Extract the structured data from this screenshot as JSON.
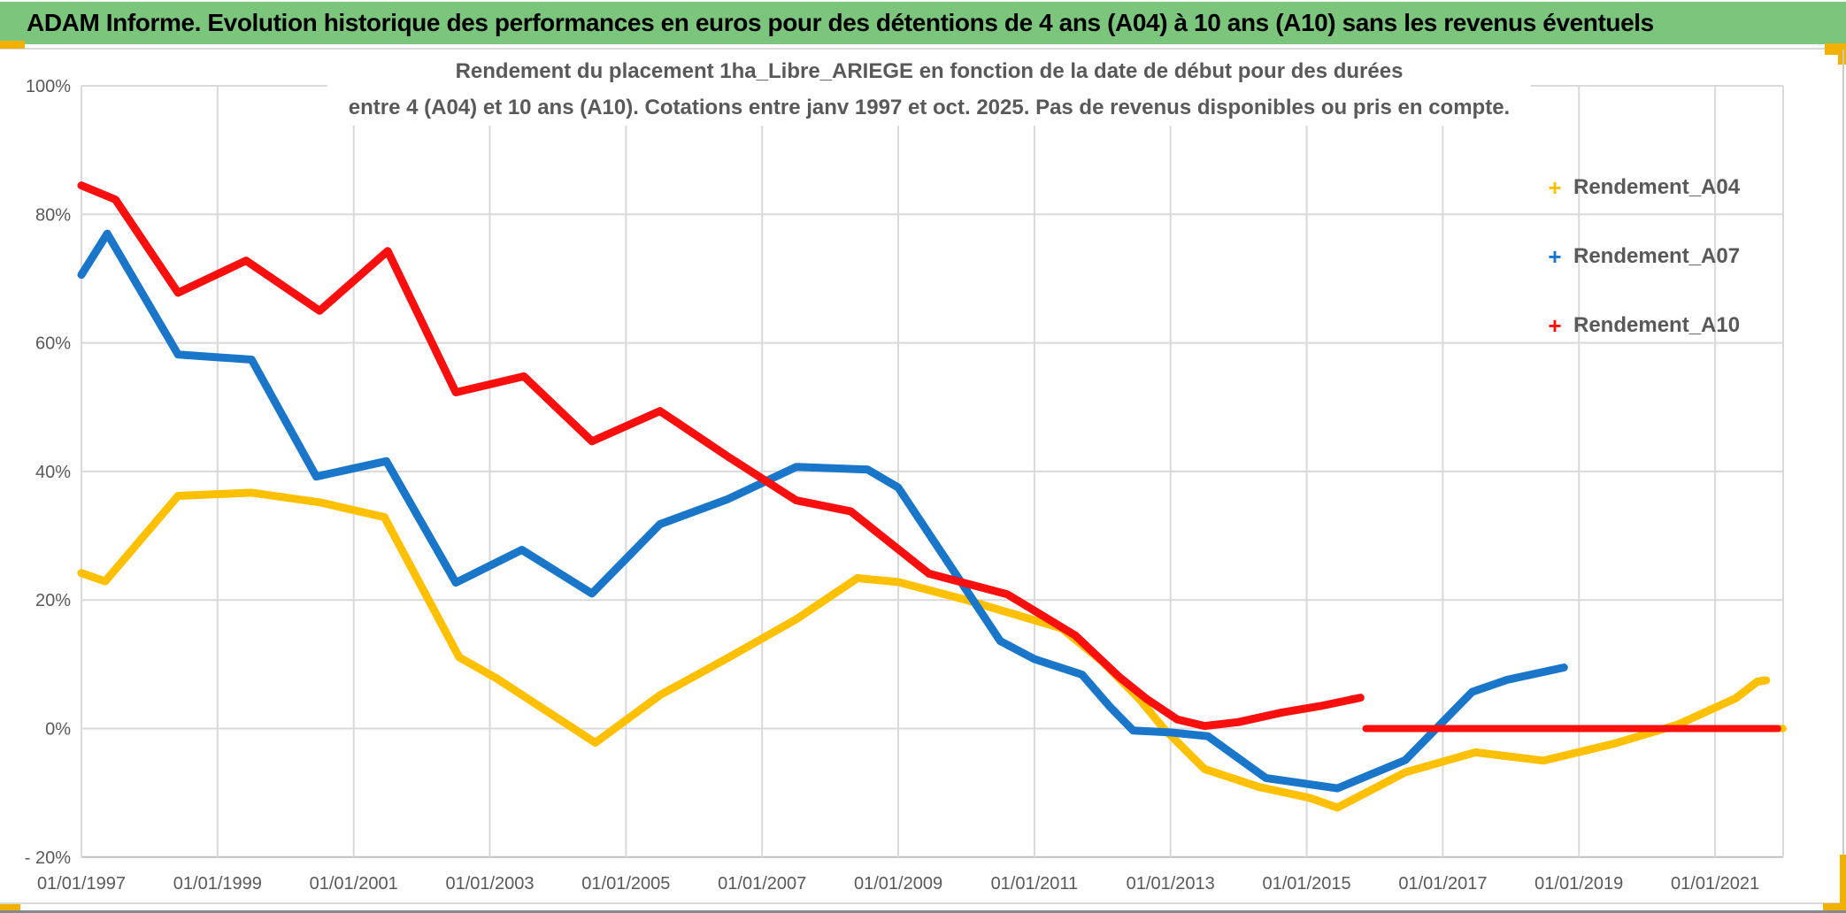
{
  "header": {
    "title": "ADAM Informe. Evolution historique des performances en euros pour des détentions de 4 ans (A04) à 10 ans (A10) sans les revenus éventuels"
  },
  "colors": {
    "header_bg": "#7CC57D",
    "corner_accent": "#F2B100",
    "gridline": "#D9D9D9",
    "axis_line": "#BFBFBF",
    "tick_text": "#595959",
    "title_text": "#595959",
    "series_a04": "#FFC000",
    "series_a07": "#1976C8",
    "series_a10": "#FA0F0F"
  },
  "chart_data": {
    "type": "line",
    "title_lines": [
      "Rendement du placement 1ha_Libre_ARIEGE en fonction de la date de début pour des durées",
      "entre 4 (A04) et 10 ans (A10). Cotations entre janv 1997 et oct. 2025. Pas de revenus disponibles ou pris en compte."
    ],
    "grid": true,
    "legend_position": "right",
    "x_range": [
      1997.0,
      2022.0
    ],
    "y_range": [
      -20,
      100
    ],
    "x_ticks": [
      {
        "label": "01/01/1997",
        "year": 1997
      },
      {
        "label": "01/01/1999",
        "year": 1999
      },
      {
        "label": "01/01/2001",
        "year": 2001
      },
      {
        "label": "01/01/2003",
        "year": 2003
      },
      {
        "label": "01/01/2005",
        "year": 2005
      },
      {
        "label": "01/01/2007",
        "year": 2007
      },
      {
        "label": "01/01/2009",
        "year": 2009
      },
      {
        "label": "01/01/2011",
        "year": 2011
      },
      {
        "label": "01/01/2013",
        "year": 2013
      },
      {
        "label": "01/01/2015",
        "year": 2015
      },
      {
        "label": "01/01/2017",
        "year": 2017
      },
      {
        "label": "01/01/2019",
        "year": 2019
      },
      {
        "label": "01/01/2021",
        "year": 2021
      }
    ],
    "y_ticks": [
      {
        "label": "100%",
        "value": 100
      },
      {
        "label": "80%",
        "value": 80
      },
      {
        "label": "60%",
        "value": 60
      },
      {
        "label": "40%",
        "value": 40
      },
      {
        "label": "20%",
        "value": 20
      },
      {
        "label": "0%",
        "value": 0
      },
      {
        "label": "- 20%",
        "value": -20
      }
    ],
    "series": [
      {
        "name": "Rendement_A04",
        "color": "#FFC000",
        "width": 9,
        "points": [
          [
            1997.0,
            24.2
          ],
          [
            1997.35,
            22.9
          ],
          [
            1998.42,
            36.2
          ],
          [
            1999.5,
            36.7
          ],
          [
            2000.5,
            35.2
          ],
          [
            2001.45,
            32.9
          ],
          [
            2002.55,
            11.1
          ],
          [
            2003.1,
            7.8
          ],
          [
            2004.55,
            -2.2
          ],
          [
            2005.5,
            5.2
          ],
          [
            2006.5,
            11.0
          ],
          [
            2007.5,
            17.0
          ],
          [
            2008.4,
            23.4
          ],
          [
            2009.0,
            22.8
          ],
          [
            2010.0,
            20.0
          ],
          [
            2011.4,
            15.6
          ],
          [
            2012.0,
            10.4
          ],
          [
            2012.55,
            4.5
          ],
          [
            2012.9,
            0.0
          ],
          [
            2013.5,
            -6.3
          ],
          [
            2014.3,
            -9.1
          ],
          [
            2015.05,
            -10.8
          ],
          [
            2015.45,
            -12.3
          ],
          [
            2016.45,
            -6.8
          ],
          [
            2017.48,
            -3.7
          ],
          [
            2018.48,
            -5.0
          ],
          [
            2019.5,
            -2.4
          ],
          [
            2020.45,
            0.6
          ],
          [
            2021.3,
            4.7
          ],
          [
            2021.62,
            7.3
          ],
          [
            2021.75,
            7.5
          ]
        ]
      },
      {
        "name": "Rendement_A04_flat_0_tail",
        "color": "#FFC000",
        "width": 8,
        "points": [
          [
            2021.82,
            0.0
          ],
          [
            2022.0,
            0.0
          ]
        ]
      },
      {
        "name": "Rendement_A07",
        "color": "#1976C8",
        "width": 9,
        "points": [
          [
            1997.0,
            70.6
          ],
          [
            1997.38,
            77.0
          ],
          [
            1998.42,
            58.2
          ],
          [
            1999.5,
            57.4
          ],
          [
            2000.45,
            39.2
          ],
          [
            2001.48,
            41.6
          ],
          [
            2002.5,
            22.7
          ],
          [
            2003.47,
            27.8
          ],
          [
            2004.5,
            21.0
          ],
          [
            2005.5,
            31.8
          ],
          [
            2006.5,
            35.7
          ],
          [
            2007.5,
            40.7
          ],
          [
            2008.55,
            40.3
          ],
          [
            2009.0,
            37.5
          ],
          [
            2010.5,
            13.6
          ],
          [
            2011.0,
            10.8
          ],
          [
            2011.7,
            8.4
          ],
          [
            2012.1,
            3.5
          ],
          [
            2012.45,
            -0.3
          ],
          [
            2013.0,
            -0.6
          ],
          [
            2013.55,
            -1.2
          ],
          [
            2014.4,
            -7.7
          ],
          [
            2015.45,
            -9.3
          ],
          [
            2016.45,
            -4.9
          ],
          [
            2017.43,
            5.7
          ],
          [
            2017.95,
            7.6
          ],
          [
            2018.78,
            9.5
          ]
        ]
      },
      {
        "name": "Rendement_A10",
        "color": "#FA0F0F",
        "width": 9,
        "points": [
          [
            1997.0,
            84.5
          ],
          [
            1997.5,
            82.3
          ],
          [
            1998.42,
            67.8
          ],
          [
            1999.42,
            72.8
          ],
          [
            2000.5,
            65.0
          ],
          [
            2001.5,
            74.3
          ],
          [
            2002.5,
            52.3
          ],
          [
            2003.5,
            54.8
          ],
          [
            2004.5,
            44.7
          ],
          [
            2005.5,
            49.4
          ],
          [
            2006.5,
            42.3
          ],
          [
            2007.5,
            35.5
          ],
          [
            2008.3,
            33.8
          ],
          [
            2009.45,
            24.1
          ],
          [
            2010.6,
            20.9
          ],
          [
            2011.6,
            14.5
          ],
          [
            2012.25,
            8.0
          ],
          [
            2012.65,
            4.6
          ],
          [
            2013.1,
            1.4
          ],
          [
            2013.5,
            0.4
          ],
          [
            2014.0,
            1.0
          ],
          [
            2014.64,
            2.5
          ],
          [
            2015.2,
            3.5
          ],
          [
            2015.79,
            4.8
          ]
        ]
      },
      {
        "name": "Rendement_A10_flat_0_tail",
        "color": "#FA0F0F",
        "width": 8,
        "points": [
          [
            2015.87,
            0.0
          ],
          [
            2021.92,
            0.0
          ]
        ]
      }
    ]
  },
  "legend": {
    "items": [
      {
        "label": "Rendement_A04",
        "color": "#FFC000",
        "marker": "+"
      },
      {
        "label": "Rendement_A07",
        "color": "#1976C8",
        "marker": "+"
      },
      {
        "label": "Rendement_A10",
        "color": "#FA0F0F",
        "marker": "+"
      }
    ]
  }
}
